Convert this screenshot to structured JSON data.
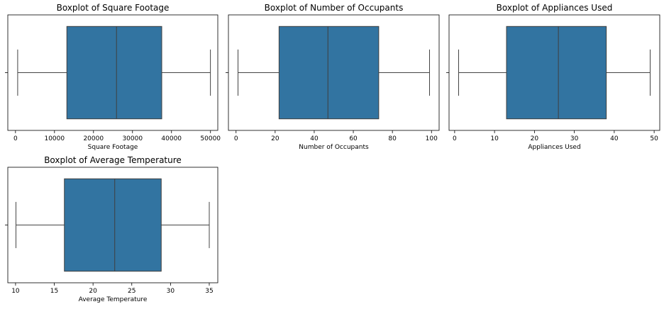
{
  "chart_data": [
    {
      "type": "box",
      "title": "Boxplot of Square Footage",
      "xlabel": "Square Footage",
      "xlim": [
        -1970,
        51870
      ],
      "ticks": [
        0,
        10000,
        20000,
        30000,
        40000,
        50000
      ],
      "stats": {
        "min": 560,
        "q1": 13170,
        "median": 25900,
        "q3": 37500,
        "max": 49980
      },
      "color": "#3274a1"
    },
    {
      "type": "box",
      "title": "Boxplot of Number of Occupants",
      "xlabel": "Number of Occupants",
      "xlim": [
        -3.9,
        103.9
      ],
      "ticks": [
        0,
        20,
        40,
        60,
        80,
        100
      ],
      "stats": {
        "min": 1,
        "q1": 22,
        "median": 47,
        "q3": 73,
        "max": 99
      },
      "color": "#3274a1"
    },
    {
      "type": "box",
      "title": "Boxplot of Appliances Used",
      "xlabel": "Appliances Used",
      "xlim": [
        -1.4,
        51.4
      ],
      "ticks": [
        0,
        10,
        20,
        30,
        40,
        50
      ],
      "stats": {
        "min": 1,
        "q1": 13,
        "median": 26,
        "q3": 38,
        "max": 49
      },
      "color": "#3274a1"
    },
    {
      "type": "box",
      "title": "Boxplot of Average Temperature",
      "xlabel": "Average Temperature",
      "xlim": [
        9.0,
        36.1
      ],
      "ticks": [
        10,
        15,
        20,
        25,
        30,
        35
      ],
      "stats": {
        "min": 10.05,
        "q1": 16.3,
        "median": 22.8,
        "q3": 28.8,
        "max": 35.0
      },
      "color": "#3274a1"
    }
  ]
}
